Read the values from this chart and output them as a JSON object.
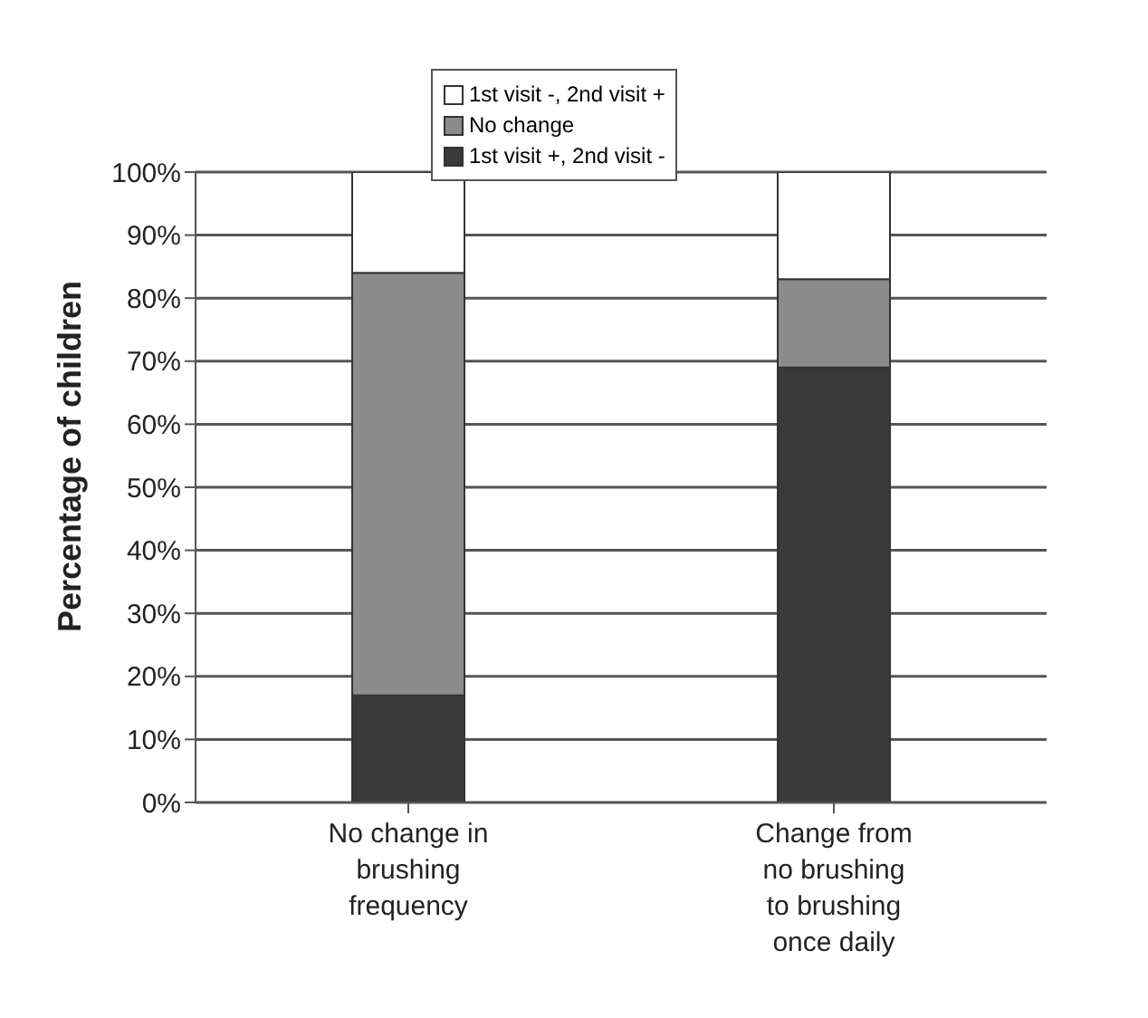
{
  "chart_data": {
    "type": "bar",
    "stacked": true,
    "ylabel": "Percentage of children",
    "categories": [
      "No change in brushing frequency",
      "Change from no brushing to brushing once daily"
    ],
    "series": [
      {
        "name": "1st visit +, 2nd visit -",
        "color": "#3a3a3a",
        "values": [
          17,
          69
        ]
      },
      {
        "name": "No change",
        "color": "#8c8c8c",
        "values": [
          67,
          14
        ]
      },
      {
        "name": "1st visit -, 2nd visit +",
        "color": "#ffffff",
        "values": [
          16,
          17
        ]
      }
    ],
    "ylim": [
      0,
      100
    ],
    "yticks": [
      {
        "value": 0,
        "label": "0%"
      },
      {
        "value": 10,
        "label": "10%"
      },
      {
        "value": 20,
        "label": "20%"
      },
      {
        "value": 30,
        "label": "30%"
      },
      {
        "value": 40,
        "label": "40%"
      },
      {
        "value": 50,
        "label": "50%"
      },
      {
        "value": 60,
        "label": "60%"
      },
      {
        "value": 70,
        "label": "70%"
      },
      {
        "value": 80,
        "label": "80%"
      },
      {
        "value": 90,
        "label": "90%"
      },
      {
        "value": 100,
        "label": "100%"
      }
    ],
    "grid": "y",
    "legend": "top"
  }
}
